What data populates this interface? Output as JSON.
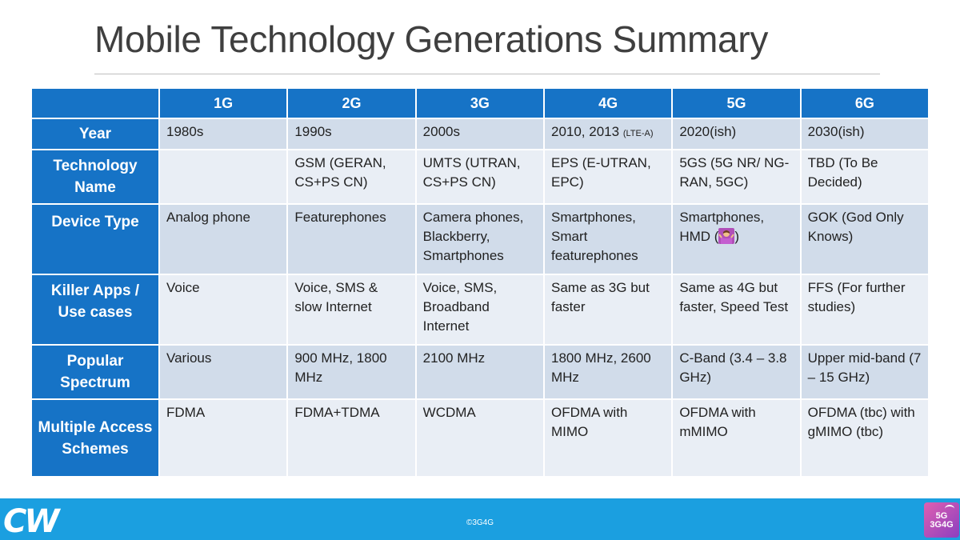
{
  "title": "Mobile Technology Generations Summary",
  "table": {
    "columns": [
      "",
      "1G",
      "2G",
      "3G",
      "4G",
      "5G",
      "6G"
    ],
    "rows": [
      {
        "label": "Year",
        "cells": [
          "1980s",
          "1990s",
          "2000s",
          "2010, 2013",
          "2020(ish)",
          "2030(ish)"
        ],
        "note_4g": "(LTE-A)"
      },
      {
        "label": "Technology Name",
        "cells": [
          "",
          "GSM (GERAN, CS+PS CN)",
          "UMTS (UTRAN, CS+PS CN)",
          "EPS (E-UTRAN, EPC)",
          "5GS (5G NR/ NG-RAN, 5GC)",
          "TBD (To Be Decided)"
        ]
      },
      {
        "label": "Device Type",
        "cells": [
          "Analog phone",
          "Featurephones",
          "Camera phones, Blackberry, Smartphones",
          "Smartphones, Smart featurephones",
          "Smartphones, HMD (",
          "GOK (God Only Knows)"
        ],
        "cell_5g_tail": ")"
      },
      {
        "label": "Killer Apps / Use cases",
        "cells": [
          "Voice",
          "Voice, SMS & slow Internet",
          "Voice, SMS, Broadband Internet",
          "Same as 3G but faster",
          "Same as 4G but faster, Speed Test",
          "FFS (For further studies)"
        ]
      },
      {
        "label": "Popular Spectrum",
        "cells": [
          "Various",
          "900 MHz, 1800 MHz",
          "2100 MHz",
          "1800 MHz, 2600 MHz",
          "C-Band (3.4 – 3.8 GHz)",
          "Upper mid-band (7 – 15 GHz)"
        ]
      },
      {
        "label": "Multiple Access Schemes",
        "cells": [
          "FDMA",
          "FDMA+TDMA",
          "WCDMA",
          "OFDMA with MIMO",
          "OFDMA with mMIMO",
          "OFDMA (tbc) with gMIMO (tbc)"
        ]
      }
    ]
  },
  "footer": {
    "logo": "CW",
    "copyright": "©3G4G",
    "badge_line1": "5G",
    "badge_line2": "3G4G"
  },
  "colors": {
    "header_blue": "#1673c6",
    "row_dark": "#d1dcea",
    "row_light": "#e9eef5",
    "footer_blue": "#1b9fe0"
  },
  "icons": {
    "device_type_5g": "person-shrugging-emoji"
  }
}
